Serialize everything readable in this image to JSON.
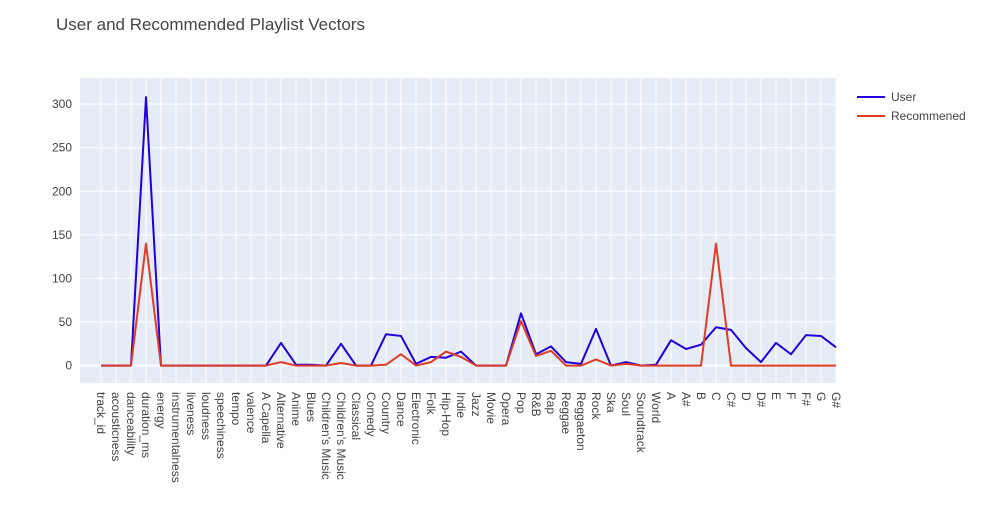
{
  "chart_data": {
    "type": "line",
    "title": "User and Recommended Playlist Vectors",
    "xlabel": "",
    "ylabel": "",
    "ylim": [
      -20,
      330
    ],
    "yticks": [
      0,
      50,
      100,
      150,
      200,
      250,
      300
    ],
    "grid": true,
    "legend": "top-right",
    "categories": [
      "track_id",
      "acousticness",
      "danceability",
      "duration_ms",
      "energy",
      "instrumentalness",
      "liveness",
      "loudness",
      "speechiness",
      "tempo",
      "valence",
      "A Capella",
      "Alternative",
      "Anime",
      "Blues",
      "Children's Music",
      "Children’s Music",
      "Classical",
      "Comedy",
      "Country",
      "Dance",
      "Electronic",
      "Folk",
      "Hip-Hop",
      "Indie",
      "Jazz",
      "Movie",
      "Opera",
      "Pop",
      "R&B",
      "Rap",
      "Reggae",
      "Reggaeton",
      "Rock",
      "Ska",
      "Soul",
      "Soundtrack",
      "World",
      "A",
      "A#",
      "B",
      "C",
      "C#",
      "D",
      "D#",
      "E",
      "F",
      "F#",
      "G",
      "G#"
    ],
    "series": [
      {
        "name": "User",
        "color": "#2200dd",
        "values": [
          0,
          0,
          0,
          308,
          0,
          0,
          0,
          0,
          0,
          0,
          0,
          0,
          26,
          1,
          1,
          0,
          25,
          0,
          0,
          36,
          34,
          2,
          10,
          9,
          16,
          0,
          0,
          0,
          60,
          13,
          22,
          4,
          2,
          42,
          0,
          4,
          0,
          1,
          29,
          19,
          24,
          44,
          41,
          20,
          4,
          26,
          13,
          35,
          34,
          21
        ]
      },
      {
        "name": "Recommened",
        "color": "#e03c24",
        "values": [
          0,
          0,
          0,
          140,
          0,
          0,
          0,
          0,
          0,
          0,
          0,
          0,
          4,
          0,
          0,
          0,
          3,
          0,
          0,
          1,
          13,
          0,
          4,
          16,
          10,
          0,
          0,
          0,
          51,
          11,
          17,
          0,
          0,
          7,
          0,
          2,
          0,
          0,
          0,
          0,
          0,
          140,
          0,
          0,
          0,
          0,
          0,
          0,
          0,
          0
        ]
      }
    ]
  }
}
